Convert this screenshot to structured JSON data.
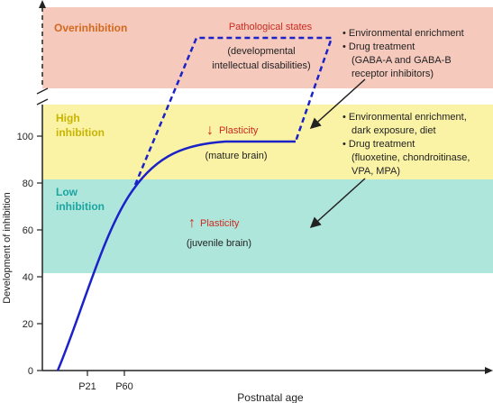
{
  "zones": {
    "overinhibition": {
      "label": "Overinhibition",
      "color": "#f6c9bd",
      "label_color": "#d2691e"
    },
    "high_inhibition": {
      "label_line1": "High",
      "label_line2": "inhibition",
      "color": "#faf3a6",
      "label_color": "#c8b400"
    },
    "low_inhibition": {
      "label_line1": "Low",
      "label_line2": "inhibition",
      "color": "#aee6dc",
      "label_color": "#1aa5a0"
    }
  },
  "annotations": {
    "pathological": {
      "title": "Pathological states",
      "line1": "(developmental",
      "line2": "intellectual disabilities)"
    },
    "mature": {
      "arrow": "↓",
      "label": "Plasticity",
      "sub": "(mature brain)"
    },
    "juvenile": {
      "arrow": "↑",
      "label": "Plasticity",
      "sub": "(juvenile brain)"
    },
    "treatment_top": {
      "bullet1": "• Environmental enrichment",
      "bullet2": "• Drug treatment",
      "detail1": "(GABA-A and GABA-B",
      "detail2": "receptor inhibitors)"
    },
    "treatment_bottom": {
      "bullet1_line1": "• Environmental enrichment,",
      "bullet1_line2": "dark exposure, diet",
      "bullet2": "• Drug treatment",
      "detail1": "(fluoxetine, chondroitinase,",
      "detail2": "VPA, MPA)"
    }
  },
  "axes": {
    "xlabel": "Postnatal age",
    "ylabel": "Development of inhibition",
    "yticks": [
      "0",
      "20",
      "40",
      "60",
      "80",
      "100"
    ],
    "xticks": [
      "P21",
      "P60"
    ]
  },
  "colors": {
    "curve": "#1a22c8",
    "plasticity_red": "#cc2a1f",
    "axis": "#222222"
  }
}
